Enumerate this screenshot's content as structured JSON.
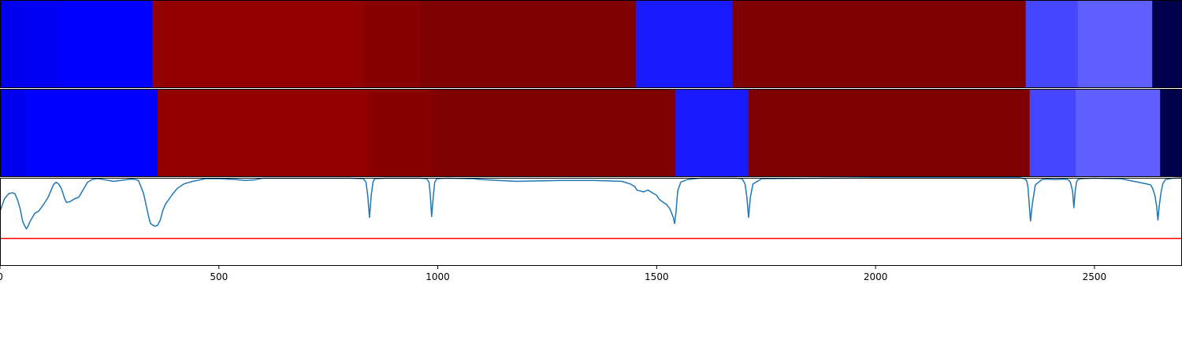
{
  "chart_data": {
    "type": "heatmap",
    "x_range": [
      0,
      2700
    ],
    "x_ticks": [
      0,
      500,
      1000,
      1500,
      2000,
      2500
    ],
    "tracks": [
      {
        "segments": [
          {
            "start": 0,
            "end": 60,
            "color": "#0000ee"
          },
          {
            "start": 60,
            "end": 140,
            "color": "#0000f4"
          },
          {
            "start": 140,
            "end": 348,
            "color": "#0000ff"
          },
          {
            "start": 348,
            "end": 830,
            "color": "#930000"
          },
          {
            "start": 830,
            "end": 960,
            "color": "#880000"
          },
          {
            "start": 960,
            "end": 1452,
            "color": "#7f0000"
          },
          {
            "start": 1452,
            "end": 1673,
            "color": "#1a1aff"
          },
          {
            "start": 1673,
            "end": 2343,
            "color": "#7f0000"
          },
          {
            "start": 2343,
            "end": 2462,
            "color": "#4646ff"
          },
          {
            "start": 2462,
            "end": 2632,
            "color": "#5f5fff"
          },
          {
            "start": 2632,
            "end": 2700,
            "color": "#00004c"
          }
        ]
      },
      {
        "segments": [
          {
            "start": 0,
            "end": 60,
            "color": "#0000ee"
          },
          {
            "start": 60,
            "end": 360,
            "color": "#0000ff"
          },
          {
            "start": 360,
            "end": 842,
            "color": "#930000"
          },
          {
            "start": 842,
            "end": 985,
            "color": "#880000"
          },
          {
            "start": 985,
            "end": 1542,
            "color": "#7f0000"
          },
          {
            "start": 1542,
            "end": 1710,
            "color": "#1a1aff"
          },
          {
            "start": 1710,
            "end": 2352,
            "color": "#7f0000"
          },
          {
            "start": 2352,
            "end": 2457,
            "color": "#4646ff"
          },
          {
            "start": 2457,
            "end": 2650,
            "color": "#5f5fff"
          },
          {
            "start": 2650,
            "end": 2700,
            "color": "#00004c"
          }
        ]
      }
    ],
    "line_panel": {
      "y_range": [
        0,
        1
      ],
      "threshold": 0.31,
      "threshold_color": "#ff0000",
      "line_color": "#1f77b4",
      "series": {
        "x": [
          0,
          10,
          20,
          28,
          34,
          40,
          46,
          52,
          57,
          60,
          64,
          68,
          74,
          80,
          88,
          94,
          100,
          110,
          116,
          122,
          128,
          134,
          140,
          144,
          148,
          152,
          160,
          170,
          180,
          200,
          210,
          220,
          230,
          260,
          300,
          310,
          316,
          322,
          328,
          332,
          336,
          340,
          344,
          350,
          354,
          360,
          366,
          372,
          378,
          385,
          395,
          405,
          420,
          440,
          470,
          500,
          540,
          560,
          580,
          600,
          700,
          800,
          830,
          836,
          840,
          844,
          848,
          852,
          856,
          880,
          960,
          975,
          980,
          983,
          986,
          990,
          993,
          998,
          1020,
          1080,
          1100,
          1180,
          1280,
          1360,
          1420,
          1440,
          1450,
          1455,
          1470,
          1480,
          1490,
          1500,
          1505,
          1515,
          1522,
          1530,
          1534,
          1538,
          1541,
          1544,
          1548,
          1555,
          1570,
          1600,
          1680,
          1695,
          1702,
          1706,
          1710,
          1714,
          1720,
          1740,
          2000,
          2330,
          2340,
          2345,
          2348,
          2351,
          2354,
          2358,
          2365,
          2380,
          2390,
          2410,
          2430,
          2440,
          2445,
          2450,
          2453,
          2456,
          2459,
          2462,
          2470,
          2500,
          2560,
          2590,
          2610,
          2620,
          2628,
          2633,
          2638,
          2642,
          2645,
          2648,
          2652,
          2656,
          2662,
          2680,
          2700
        ],
        "y": [
          0.62,
          0.76,
          0.82,
          0.83,
          0.82,
          0.75,
          0.65,
          0.5,
          0.45,
          0.42,
          0.45,
          0.5,
          0.55,
          0.6,
          0.62,
          0.66,
          0.7,
          0.78,
          0.85,
          0.92,
          0.95,
          0.93,
          0.88,
          0.82,
          0.76,
          0.72,
          0.73,
          0.76,
          0.78,
          0.95,
          0.98,
          0.99,
          0.985,
          0.96,
          0.985,
          0.98,
          0.97,
          0.9,
          0.82,
          0.73,
          0.64,
          0.55,
          0.48,
          0.46,
          0.45,
          0.46,
          0.52,
          0.63,
          0.7,
          0.75,
          0.82,
          0.88,
          0.93,
          0.96,
          0.99,
          0.99,
          0.98,
          0.97,
          0.975,
          0.995,
          0.995,
          0.995,
          0.99,
          0.95,
          0.8,
          0.55,
          0.8,
          0.95,
          0.99,
          0.995,
          0.995,
          0.99,
          0.95,
          0.8,
          0.56,
          0.8,
          0.95,
          0.99,
          0.995,
          0.99,
          0.98,
          0.96,
          0.97,
          0.97,
          0.96,
          0.93,
          0.9,
          0.86,
          0.84,
          0.86,
          0.83,
          0.8,
          0.76,
          0.72,
          0.7,
          0.65,
          0.6,
          0.55,
          0.48,
          0.6,
          0.85,
          0.95,
          0.98,
          0.995,
          0.995,
          0.99,
          0.93,
          0.78,
          0.55,
          0.78,
          0.93,
          0.99,
          1.0,
          1.0,
          0.99,
          0.97,
          0.9,
          0.7,
          0.51,
          0.7,
          0.92,
          0.98,
          0.985,
          0.98,
          0.985,
          0.98,
          0.95,
          0.85,
          0.66,
          0.85,
          0.95,
          0.98,
          0.99,
          0.995,
          0.99,
          0.96,
          0.94,
          0.93,
          0.92,
          0.88,
          0.8,
          0.68,
          0.52,
          0.68,
          0.83,
          0.93,
          0.98,
          0.995,
          1.0
        ]
      }
    },
    "grid": false,
    "legend": "none"
  }
}
